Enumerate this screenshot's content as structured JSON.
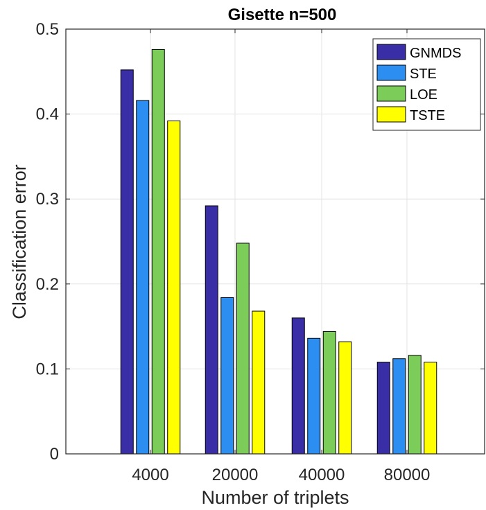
{
  "chart_data": {
    "type": "bar",
    "title": "Gisette n=500",
    "xlabel": "Number of triplets",
    "ylabel": "Classification error",
    "categories": [
      "4000",
      "20000",
      "40000",
      "80000"
    ],
    "series": [
      {
        "name": "GNMDS",
        "color": "#3a2ea6",
        "values": [
          0.452,
          0.292,
          0.16,
          0.108
        ]
      },
      {
        "name": "STE",
        "color": "#2b8ef0",
        "values": [
          0.416,
          0.184,
          0.136,
          0.112
        ]
      },
      {
        "name": "LOE",
        "color": "#7ccc5a",
        "values": [
          0.476,
          0.248,
          0.144,
          0.116
        ]
      },
      {
        "name": "TSTE",
        "color": "#ffff00",
        "values": [
          0.392,
          0.168,
          0.132,
          0.108
        ]
      }
    ],
    "ylim": [
      0,
      0.5
    ],
    "yticks": [
      "0",
      "0.1",
      "0.2",
      "0.3",
      "0.4",
      "0.5"
    ],
    "grid": true,
    "legend_position": "top-right"
  }
}
